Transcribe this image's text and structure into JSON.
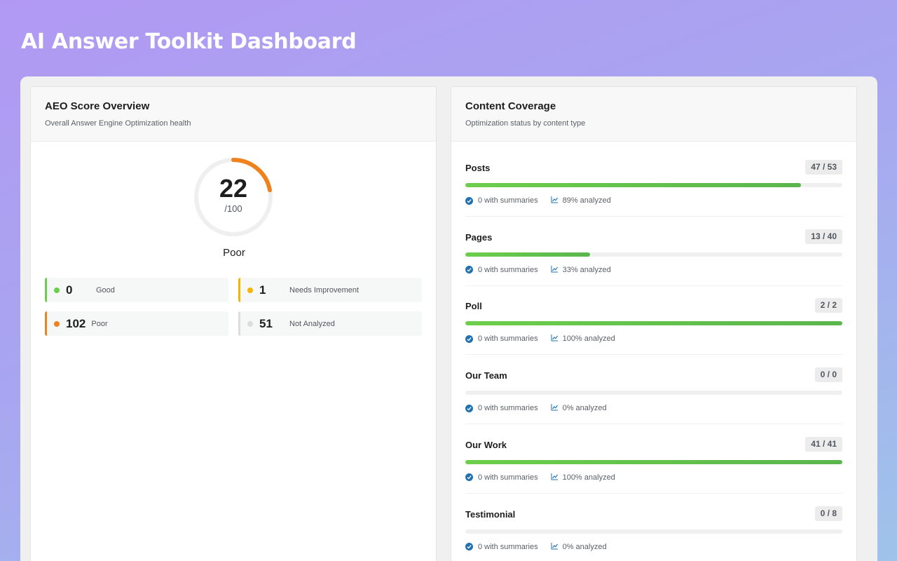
{
  "page": {
    "title": "AI Answer Toolkit Dashboard"
  },
  "score_card": {
    "title": "AEO Score Overview",
    "subtitle": "Overall Answer Engine Optimization health",
    "score": "22",
    "score_max": "/100",
    "score_fraction": 0.22,
    "rating": "Poor",
    "ring_color": "#f0821e",
    "stats": [
      {
        "count": "0",
        "label": "Good",
        "color": "#6ccf4a"
      },
      {
        "count": "1",
        "label": "Needs Improvement",
        "color": "#f7b500"
      },
      {
        "count": "102",
        "label": "Poor",
        "color": "#f0821e"
      },
      {
        "count": "51",
        "label": "Not Analyzed",
        "color": "#dcdcde"
      }
    ]
  },
  "coverage_card": {
    "title": "Content Coverage",
    "subtitle": "Optimization status by content type",
    "rows": [
      {
        "name": "Posts",
        "ratio": "47 / 53",
        "progress": 0.89,
        "summaries": "0 with summaries",
        "analyzed": "89% analyzed"
      },
      {
        "name": "Pages",
        "ratio": "13 / 40",
        "progress": 0.33,
        "summaries": "0 with summaries",
        "analyzed": "33% analyzed"
      },
      {
        "name": "Poll",
        "ratio": "2 / 2",
        "progress": 1.0,
        "summaries": "0 with summaries",
        "analyzed": "100% analyzed"
      },
      {
        "name": "Our Team",
        "ratio": "0 / 0",
        "progress": 0,
        "summaries": "0 with summaries",
        "analyzed": "0% analyzed"
      },
      {
        "name": "Our Work",
        "ratio": "41 / 41",
        "progress": 1.0,
        "summaries": "0 with summaries",
        "analyzed": "100% analyzed"
      },
      {
        "name": "Testimonial",
        "ratio": "0 / 8",
        "progress": 0,
        "summaries": "0 with summaries",
        "analyzed": "0% analyzed"
      }
    ]
  }
}
